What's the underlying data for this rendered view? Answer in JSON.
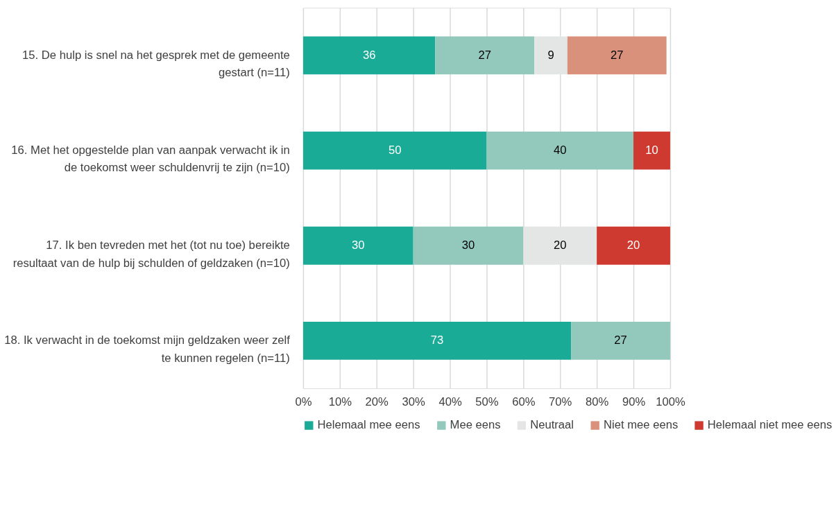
{
  "chart_data": {
    "type": "bar",
    "orientation": "horizontal",
    "stacked": true,
    "categories": [
      "15. De hulp is snel na het gesprek met de gemeente gestart (n=11)",
      "16. Met het opgestelde plan van aanpak verwacht ik in de toekomst weer schuldenvrij te zijn (n=10)",
      "17. Ik ben tevreden met het (tot nu toe) bereikte resultaat van de hulp bij schulden of geldzaken (n=10)",
      "18. Ik verwacht in de toekomst mijn geldzaken weer zelf te kunnen regelen (n=11)"
    ],
    "series": [
      {
        "name": "Helemaal mee eens",
        "color": "#1aab97",
        "values": [
          36,
          50,
          30,
          73
        ]
      },
      {
        "name": "Mee eens",
        "color": "#93c9bc",
        "values": [
          27,
          40,
          30,
          27
        ]
      },
      {
        "name": "Neutraal",
        "color": "#e3e6e5",
        "values": [
          9,
          null,
          20,
          null
        ]
      },
      {
        "name": "Niet mee eens",
        "color": "#d9917b",
        "values": [
          27,
          null,
          null,
          null
        ]
      },
      {
        "name": "Helemaal niet mee eens",
        "color": "#cf3a30",
        "values": [
          null,
          10,
          20,
          null
        ]
      }
    ],
    "xlim": [
      0,
      100
    ],
    "xticks": [
      {
        "value": 0,
        "label": "0%"
      },
      {
        "value": 10,
        "label": "10%"
      },
      {
        "value": 20,
        "label": "20%"
      },
      {
        "value": 30,
        "label": "30%"
      },
      {
        "value": 40,
        "label": "40%"
      },
      {
        "value": 50,
        "label": "50%"
      },
      {
        "value": 60,
        "label": "60%"
      },
      {
        "value": 70,
        "label": "70%"
      },
      {
        "value": 80,
        "label": "80%"
      },
      {
        "value": 90,
        "label": "90%"
      },
      {
        "value": 100,
        "label": "100%"
      }
    ],
    "grid": "x",
    "legend": "bottom",
    "data_labels": true
  }
}
